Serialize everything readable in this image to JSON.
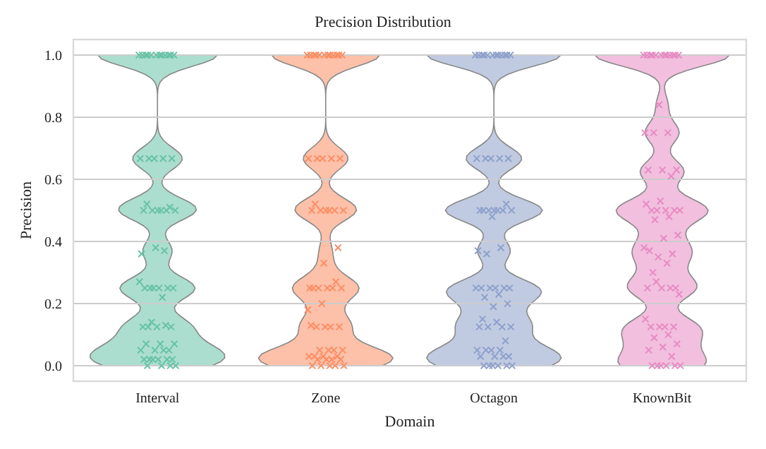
{
  "chart_data": {
    "type": "scatter",
    "title": "Precision Distribution",
    "xlabel": "Domain",
    "ylabel": "Precision",
    "categories": [
      "Interval",
      "Zone",
      "Octagon",
      "KnownBit"
    ],
    "ylim": [
      -0.05,
      1.05
    ],
    "yticks": [
      {
        "value": 0,
        "label": "0.0"
      },
      {
        "value": 0.2,
        "label": "0.2"
      },
      {
        "value": 0.4,
        "label": "0.4"
      },
      {
        "value": 0.6,
        "label": "0.6"
      },
      {
        "value": 0.8,
        "label": "0.8"
      },
      {
        "value": 1,
        "label": "1.0"
      }
    ],
    "grid": "y",
    "legend": false,
    "marker": "cross",
    "series": [
      {
        "color": "#66c2a5",
        "x": [
          "Interval",
          "Interval",
          "Interval",
          "Interval",
          "Interval",
          "Interval",
          "Interval",
          "Interval",
          "Interval",
          "Interval",
          "Interval",
          "Interval",
          "Interval",
          "Interval",
          "Interval",
          "Interval",
          "Interval",
          "Interval",
          "Interval",
          "Interval",
          "Interval",
          "Interval",
          "Interval",
          "Interval",
          "Interval",
          "Interval",
          "Interval",
          "Interval",
          "Interval",
          "Interval",
          "Interval",
          "Interval",
          "Interval",
          "Interval",
          "Interval",
          "Interval",
          "Interval",
          "Interval",
          "Interval",
          "Interval",
          "Interval",
          "Interval",
          "Interval",
          "Interval",
          "Interval",
          "Interval",
          "Interval",
          "Interval",
          "Interval",
          "Interval",
          "Interval",
          "Interval",
          "Interval",
          "Interval",
          "Interval",
          "Interval",
          "Interval",
          "Interval",
          "Interval"
        ],
        "values": [
          1,
          1,
          1,
          1,
          1,
          1,
          1,
          1,
          1,
          1,
          1,
          1,
          0.667,
          0.667,
          0.667,
          0.667,
          0.667,
          0.5,
          0.5,
          0.5,
          0.5,
          0.5,
          0.5,
          0.52,
          0.51,
          0.38,
          0.36,
          0.37,
          0.25,
          0.25,
          0.25,
          0.25,
          0.25,
          0.25,
          0.27,
          0.22,
          0.125,
          0.125,
          0.125,
          0.125,
          0.13,
          0.14,
          0.07,
          0.07,
          0.07,
          0.05,
          0.05,
          0.05,
          0.05,
          0.02,
          0.02,
          0.02,
          0.02,
          0.02,
          0.02,
          0,
          0,
          0,
          0
        ]
      },
      {
        "color": "#fc8d62",
        "x": [
          "Zone",
          "Zone",
          "Zone",
          "Zone",
          "Zone",
          "Zone",
          "Zone",
          "Zone",
          "Zone",
          "Zone",
          "Zone",
          "Zone",
          "Zone",
          "Zone",
          "Zone",
          "Zone",
          "Zone",
          "Zone",
          "Zone",
          "Zone",
          "Zone",
          "Zone",
          "Zone",
          "Zone",
          "Zone",
          "Zone",
          "Zone",
          "Zone",
          "Zone",
          "Zone",
          "Zone",
          "Zone",
          "Zone",
          "Zone",
          "Zone",
          "Zone",
          "Zone",
          "Zone",
          "Zone",
          "Zone",
          "Zone",
          "Zone",
          "Zone",
          "Zone",
          "Zone",
          "Zone",
          "Zone",
          "Zone",
          "Zone",
          "Zone",
          "Zone",
          "Zone",
          "Zone",
          "Zone",
          "Zone",
          "Zone",
          "Zone"
        ],
        "values": [
          1,
          1,
          1,
          1,
          1,
          1,
          1,
          1,
          1,
          1,
          1,
          1,
          0.667,
          0.667,
          0.667,
          0.667,
          0.667,
          0.5,
          0.5,
          0.5,
          0.5,
          0.5,
          0.5,
          0.52,
          0.38,
          0.33,
          0.25,
          0.25,
          0.25,
          0.25,
          0.25,
          0.25,
          0.27,
          0.2,
          0.18,
          0.125,
          0.125,
          0.125,
          0.125,
          0.13,
          0.05,
          0.05,
          0.05,
          0.05,
          0.03,
          0.03,
          0.03,
          0.03,
          0.02,
          0.02,
          0.02,
          0.02,
          0,
          0,
          0,
          0,
          0
        ]
      },
      {
        "color": "#8da0cb",
        "x": [
          "Octagon",
          "Octagon",
          "Octagon",
          "Octagon",
          "Octagon",
          "Octagon",
          "Octagon",
          "Octagon",
          "Octagon",
          "Octagon",
          "Octagon",
          "Octagon",
          "Octagon",
          "Octagon",
          "Octagon",
          "Octagon",
          "Octagon",
          "Octagon",
          "Octagon",
          "Octagon",
          "Octagon",
          "Octagon",
          "Octagon",
          "Octagon",
          "Octagon",
          "Octagon",
          "Octagon",
          "Octagon",
          "Octagon",
          "Octagon",
          "Octagon",
          "Octagon",
          "Octagon",
          "Octagon",
          "Octagon",
          "Octagon",
          "Octagon",
          "Octagon",
          "Octagon",
          "Octagon",
          "Octagon",
          "Octagon",
          "Octagon",
          "Octagon",
          "Octagon",
          "Octagon",
          "Octagon",
          "Octagon",
          "Octagon",
          "Octagon",
          "Octagon",
          "Octagon",
          "Octagon",
          "Octagon",
          "Octagon",
          "Octagon",
          "Octagon",
          "Octagon",
          "Octagon",
          "Octagon"
        ],
        "values": [
          1,
          1,
          1,
          1,
          1,
          1,
          1,
          1,
          1,
          1,
          1,
          1,
          0.667,
          0.667,
          0.667,
          0.667,
          0.667,
          0.5,
          0.5,
          0.5,
          0.5,
          0.5,
          0.5,
          0.5,
          0.52,
          0.48,
          0.37,
          0.38,
          0.36,
          0.25,
          0.25,
          0.25,
          0.25,
          0.25,
          0.25,
          0.23,
          0.22,
          0.2,
          0.19,
          0.125,
          0.125,
          0.125,
          0.125,
          0.14,
          0.15,
          0.08,
          0.05,
          0.05,
          0.05,
          0.05,
          0.03,
          0.03,
          0.03,
          0.03,
          0,
          0,
          0,
          0,
          0,
          0
        ]
      },
      {
        "color": "#e78ac3",
        "x": [
          "KnownBit",
          "KnownBit",
          "KnownBit",
          "KnownBit",
          "KnownBit",
          "KnownBit",
          "KnownBit",
          "KnownBit",
          "KnownBit",
          "KnownBit",
          "KnownBit",
          "KnownBit",
          "KnownBit",
          "KnownBit",
          "KnownBit",
          "KnownBit",
          "KnownBit",
          "KnownBit",
          "KnownBit",
          "KnownBit",
          "KnownBit",
          "KnownBit",
          "KnownBit",
          "KnownBit",
          "KnownBit",
          "KnownBit",
          "KnownBit",
          "KnownBit",
          "KnownBit",
          "KnownBit",
          "KnownBit",
          "KnownBit",
          "KnownBit",
          "KnownBit",
          "KnownBit",
          "KnownBit",
          "KnownBit",
          "KnownBit",
          "KnownBit",
          "KnownBit",
          "KnownBit",
          "KnownBit",
          "KnownBit",
          "KnownBit",
          "KnownBit",
          "KnownBit",
          "KnownBit",
          "KnownBit",
          "KnownBit",
          "KnownBit",
          "KnownBit",
          "KnownBit",
          "KnownBit",
          "KnownBit",
          "KnownBit",
          "KnownBit",
          "KnownBit",
          "KnownBit",
          "KnownBit",
          "KnownBit"
        ],
        "values": [
          1,
          1,
          1,
          1,
          1,
          1,
          1,
          1,
          1,
          1,
          1,
          1,
          0.84,
          0.75,
          0.75,
          0.75,
          0.63,
          0.63,
          0.63,
          0.61,
          0.5,
          0.5,
          0.5,
          0.5,
          0.5,
          0.53,
          0.52,
          0.48,
          0.47,
          0.42,
          0.41,
          0.37,
          0.36,
          0.35,
          0.38,
          0.33,
          0.3,
          0.25,
          0.25,
          0.25,
          0.25,
          0.27,
          0.23,
          0.125,
          0.125,
          0.125,
          0.125,
          0.15,
          0.1,
          0.09,
          0.07,
          0.06,
          0.05,
          0.03,
          0,
          0,
          0,
          0,
          0,
          0
        ]
      }
    ]
  }
}
